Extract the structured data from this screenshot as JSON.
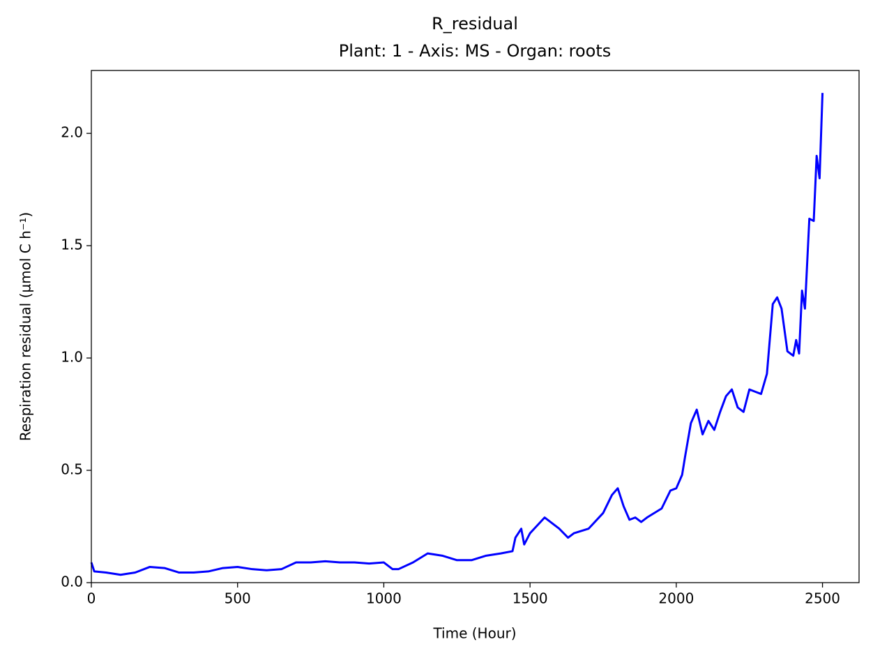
{
  "chart_data": {
    "type": "line",
    "title": "R_residual",
    "subtitle": "Plant: 1 - Axis: MS - Organ: roots",
    "x_label": "Time (Hour)",
    "y_label": "Respiration residual (µmol C h⁻¹)",
    "x": [
      0,
      10,
      50,
      100,
      150,
      200,
      250,
      300,
      350,
      400,
      450,
      500,
      550,
      600,
      650,
      700,
      750,
      800,
      850,
      900,
      950,
      1000,
      1030,
      1050,
      1100,
      1150,
      1200,
      1250,
      1300,
      1350,
      1400,
      1440,
      1450,
      1470,
      1480,
      1500,
      1550,
      1600,
      1630,
      1650,
      1700,
      1750,
      1780,
      1800,
      1820,
      1840,
      1860,
      1880,
      1900,
      1950,
      1980,
      2000,
      2020,
      2030,
      2050,
      2070,
      2090,
      2110,
      2130,
      2150,
      2170,
      2190,
      2210,
      2230,
      2250,
      2270,
      2290,
      2310,
      2330,
      2345,
      2360,
      2380,
      2400,
      2410,
      2420,
      2430,
      2440,
      2455,
      2470,
      2480,
      2490,
      2500
    ],
    "series": [
      {
        "name": "R_residual",
        "color": "#0000ff",
        "values": [
          0.09,
          0.05,
          0.045,
          0.035,
          0.045,
          0.07,
          0.065,
          0.045,
          0.045,
          0.05,
          0.065,
          0.07,
          0.06,
          0.055,
          0.06,
          0.09,
          0.09,
          0.095,
          0.09,
          0.09,
          0.085,
          0.09,
          0.06,
          0.06,
          0.09,
          0.13,
          0.12,
          0.1,
          0.1,
          0.12,
          0.13,
          0.14,
          0.2,
          0.24,
          0.17,
          0.22,
          0.29,
          0.24,
          0.2,
          0.22,
          0.24,
          0.31,
          0.39,
          0.42,
          0.34,
          0.28,
          0.29,
          0.27,
          0.29,
          0.33,
          0.41,
          0.42,
          0.48,
          0.56,
          0.71,
          0.77,
          0.66,
          0.72,
          0.68,
          0.76,
          0.83,
          0.86,
          0.78,
          0.76,
          0.86,
          0.85,
          0.84,
          0.93,
          1.24,
          1.27,
          1.22,
          1.03,
          1.01,
          1.08,
          1.02,
          1.3,
          1.22,
          1.62,
          1.61,
          1.9,
          1.8,
          2.18
        ]
      }
    ],
    "xlim": [
      0,
      2625
    ],
    "ylim": [
      0,
      2.28
    ],
    "xticks": [
      0,
      500,
      1000,
      1500,
      2000,
      2500
    ],
    "yticks": [
      {
        "value": 0,
        "label": "0.0"
      },
      0.5,
      {
        "value": 1,
        "label": "1.0"
      },
      1.5,
      {
        "value": 2,
        "label": "2.0"
      }
    ],
    "grid": false
  }
}
